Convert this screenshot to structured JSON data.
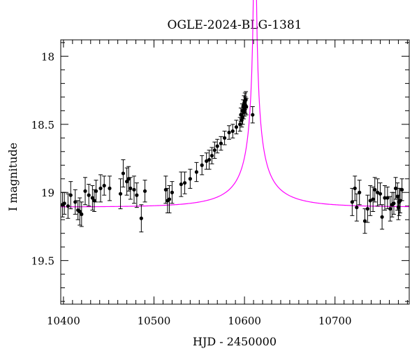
{
  "chart_data": {
    "type": "scatter",
    "title": "OGLE-2024-BLG-1381",
    "xlabel": "HJD - 2450000",
    "ylabel": "I magnitude",
    "xlim": [
      10397,
      10782
    ],
    "ylim": [
      19.82,
      17.88
    ],
    "y_inverted": true,
    "grid": false,
    "x_ticks": [
      10400,
      10500,
      10600,
      10700
    ],
    "y_ticks": [
      18,
      18.5,
      19,
      19.5
    ],
    "colors": {
      "points": "#000000",
      "model": "#ff00ff"
    },
    "series": [
      {
        "type": "scatter_errorbar",
        "points": [
          [
            10399,
            19.09,
            0.09
          ],
          [
            10401,
            19.08,
            0.08
          ],
          [
            10405,
            19.1,
            0.09
          ],
          [
            10408,
            19.02,
            0.1
          ],
          [
            10413,
            19.07,
            0.09
          ],
          [
            10416,
            19.13,
            0.07
          ],
          [
            10418,
            19.14,
            0.1
          ],
          [
            10420,
            19.16,
            0.09
          ],
          [
            10424,
            18.99,
            0.1
          ],
          [
            10428,
            19.02,
            0.08
          ],
          [
            10432,
            19.04,
            0.09
          ],
          [
            10434,
            19.06,
            0.08
          ],
          [
            10436,
            18.99,
            0.08
          ],
          [
            10441,
            18.97,
            0.1
          ],
          [
            10445,
            18.95,
            0.07
          ],
          [
            10451,
            18.97,
            0.09
          ],
          [
            10463,
            19.01,
            0.11
          ],
          [
            10466,
            18.86,
            0.1
          ],
          [
            10470,
            18.92,
            0.1
          ],
          [
            10472,
            18.9,
            0.09
          ],
          [
            10474,
            18.97,
            0.08
          ],
          [
            10478,
            18.98,
            0.1
          ],
          [
            10481,
            19.02,
            0.09
          ],
          [
            10486,
            19.19,
            0.1
          ],
          [
            10490,
            18.99,
            0.08
          ],
          [
            10513,
            18.98,
            0.1
          ],
          [
            10515,
            19.06,
            0.09
          ],
          [
            10517,
            19.05,
            0.1
          ],
          [
            10520,
            19.0,
            0.08
          ],
          [
            10530,
            18.94,
            0.09
          ],
          [
            10534,
            18.93,
            0.08
          ],
          [
            10540,
            18.9,
            0.07
          ],
          [
            10547,
            18.85,
            0.07
          ],
          [
            10553,
            18.8,
            0.07
          ],
          [
            10558,
            18.77,
            0.06
          ],
          [
            10561,
            18.76,
            0.07
          ],
          [
            10564,
            18.73,
            0.06
          ],
          [
            10567,
            18.69,
            0.06
          ],
          [
            10570,
            18.66,
            0.05
          ],
          [
            10574,
            18.64,
            0.05
          ],
          [
            10578,
            18.6,
            0.05
          ],
          [
            10583,
            18.56,
            0.05
          ],
          [
            10587,
            18.55,
            0.05
          ],
          [
            10591,
            18.52,
            0.05
          ],
          [
            10595,
            18.5,
            0.05
          ],
          [
            10596,
            18.43,
            0.05
          ],
          [
            10597,
            18.47,
            0.05
          ],
          [
            10597.5,
            18.4,
            0.05
          ],
          [
            10598,
            18.45,
            0.05
          ],
          [
            10598.5,
            18.37,
            0.05
          ],
          [
            10599,
            18.41,
            0.05
          ],
          [
            10599.5,
            18.35,
            0.06
          ],
          [
            10600,
            18.39,
            0.05
          ],
          [
            10600.5,
            18.33,
            0.06
          ],
          [
            10601,
            18.36,
            0.06
          ],
          [
            10601.5,
            18.32,
            0.06
          ],
          [
            10602,
            18.37,
            0.06
          ],
          [
            10609,
            18.43,
            0.06
          ],
          [
            10719,
            19.07,
            0.1
          ],
          [
            10722,
            18.97,
            0.09
          ],
          [
            10724,
            19.11,
            0.1
          ],
          [
            10727,
            19.0,
            0.09
          ],
          [
            10733,
            19.21,
            0.09
          ],
          [
            10736,
            19.12,
            0.1
          ],
          [
            10739,
            19.06,
            0.11
          ],
          [
            10742,
            19.05,
            0.09
          ],
          [
            10744,
            18.98,
            0.09
          ],
          [
            10747,
            19.0,
            0.1
          ],
          [
            10750,
            19.01,
            0.08
          ],
          [
            10752,
            19.18,
            0.09
          ],
          [
            10755,
            19.04,
            0.09
          ],
          [
            10758,
            19.04,
            0.08
          ],
          [
            10761,
            19.12,
            0.09
          ],
          [
            10763,
            19.09,
            0.09
          ],
          [
            10765,
            19.08,
            0.08
          ],
          [
            10767,
            18.97,
            0.08
          ],
          [
            10769,
            19.03,
            0.1
          ],
          [
            10770,
            19.11,
            0.09
          ],
          [
            10771,
            19.07,
            0.1
          ],
          [
            10772,
            19.06,
            0.09
          ],
          [
            10774,
            18.98,
            0.08
          ]
        ]
      },
      {
        "type": "model_curve",
        "model": {
          "t0": 10611.5,
          "u0": 0.0,
          "tE": 70.0,
          "m_base": 19.107,
          "fs": 0.0775
        }
      }
    ]
  }
}
